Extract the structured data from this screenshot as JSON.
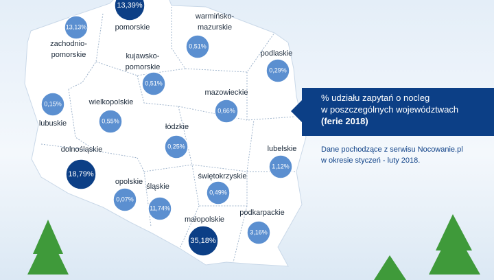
{
  "regions": [
    {
      "name": [
        "pomorskie"
      ],
      "share": "13,39%"
    },
    {
      "name": [
        "zachodnio-",
        "pomorskie"
      ],
      "share": "13,13%"
    },
    {
      "name": [
        "warmińsko-",
        "mazurskie"
      ],
      "share": "0,51%"
    },
    {
      "name": [
        "kujawsko-",
        "pomorskie"
      ],
      "share": "0,51%"
    },
    {
      "name": [
        "podlaskie"
      ],
      "share": "0,29%"
    },
    {
      "name": [
        "mazowieckie"
      ],
      "share": "0,66%"
    },
    {
      "name": [
        "lubuskie"
      ],
      "share": "0,15%"
    },
    {
      "name": [
        "wielkopolskie"
      ],
      "share": "0,55%"
    },
    {
      "name": [
        "łódzkie"
      ],
      "share": "0,25%"
    },
    {
      "name": [
        "lubelskie"
      ],
      "share": "1,12%"
    },
    {
      "name": [
        "dolnośląskie"
      ],
      "share": "18,79%"
    },
    {
      "name": [
        "opolskie"
      ],
      "share": "0,07%"
    },
    {
      "name": [
        "śląskie"
      ],
      "share": "11,74%"
    },
    {
      "name": [
        "świętokrzyskie"
      ],
      "share": "0,49%"
    },
    {
      "name": [
        "małopolskie"
      ],
      "share": "35,18%"
    },
    {
      "name": [
        "podkarpackie"
      ],
      "share": "3,16%"
    }
  ],
  "info": {
    "title_lines": [
      "% udziału zapytań o nocleg",
      "w poszczególnych województwach"
    ],
    "bold_line": "(ferie 2018)",
    "source_lines": [
      "Dane pochodzące z serwisu Nocowanie.pl",
      "w okresie styczeń - luty 2018."
    ]
  }
}
